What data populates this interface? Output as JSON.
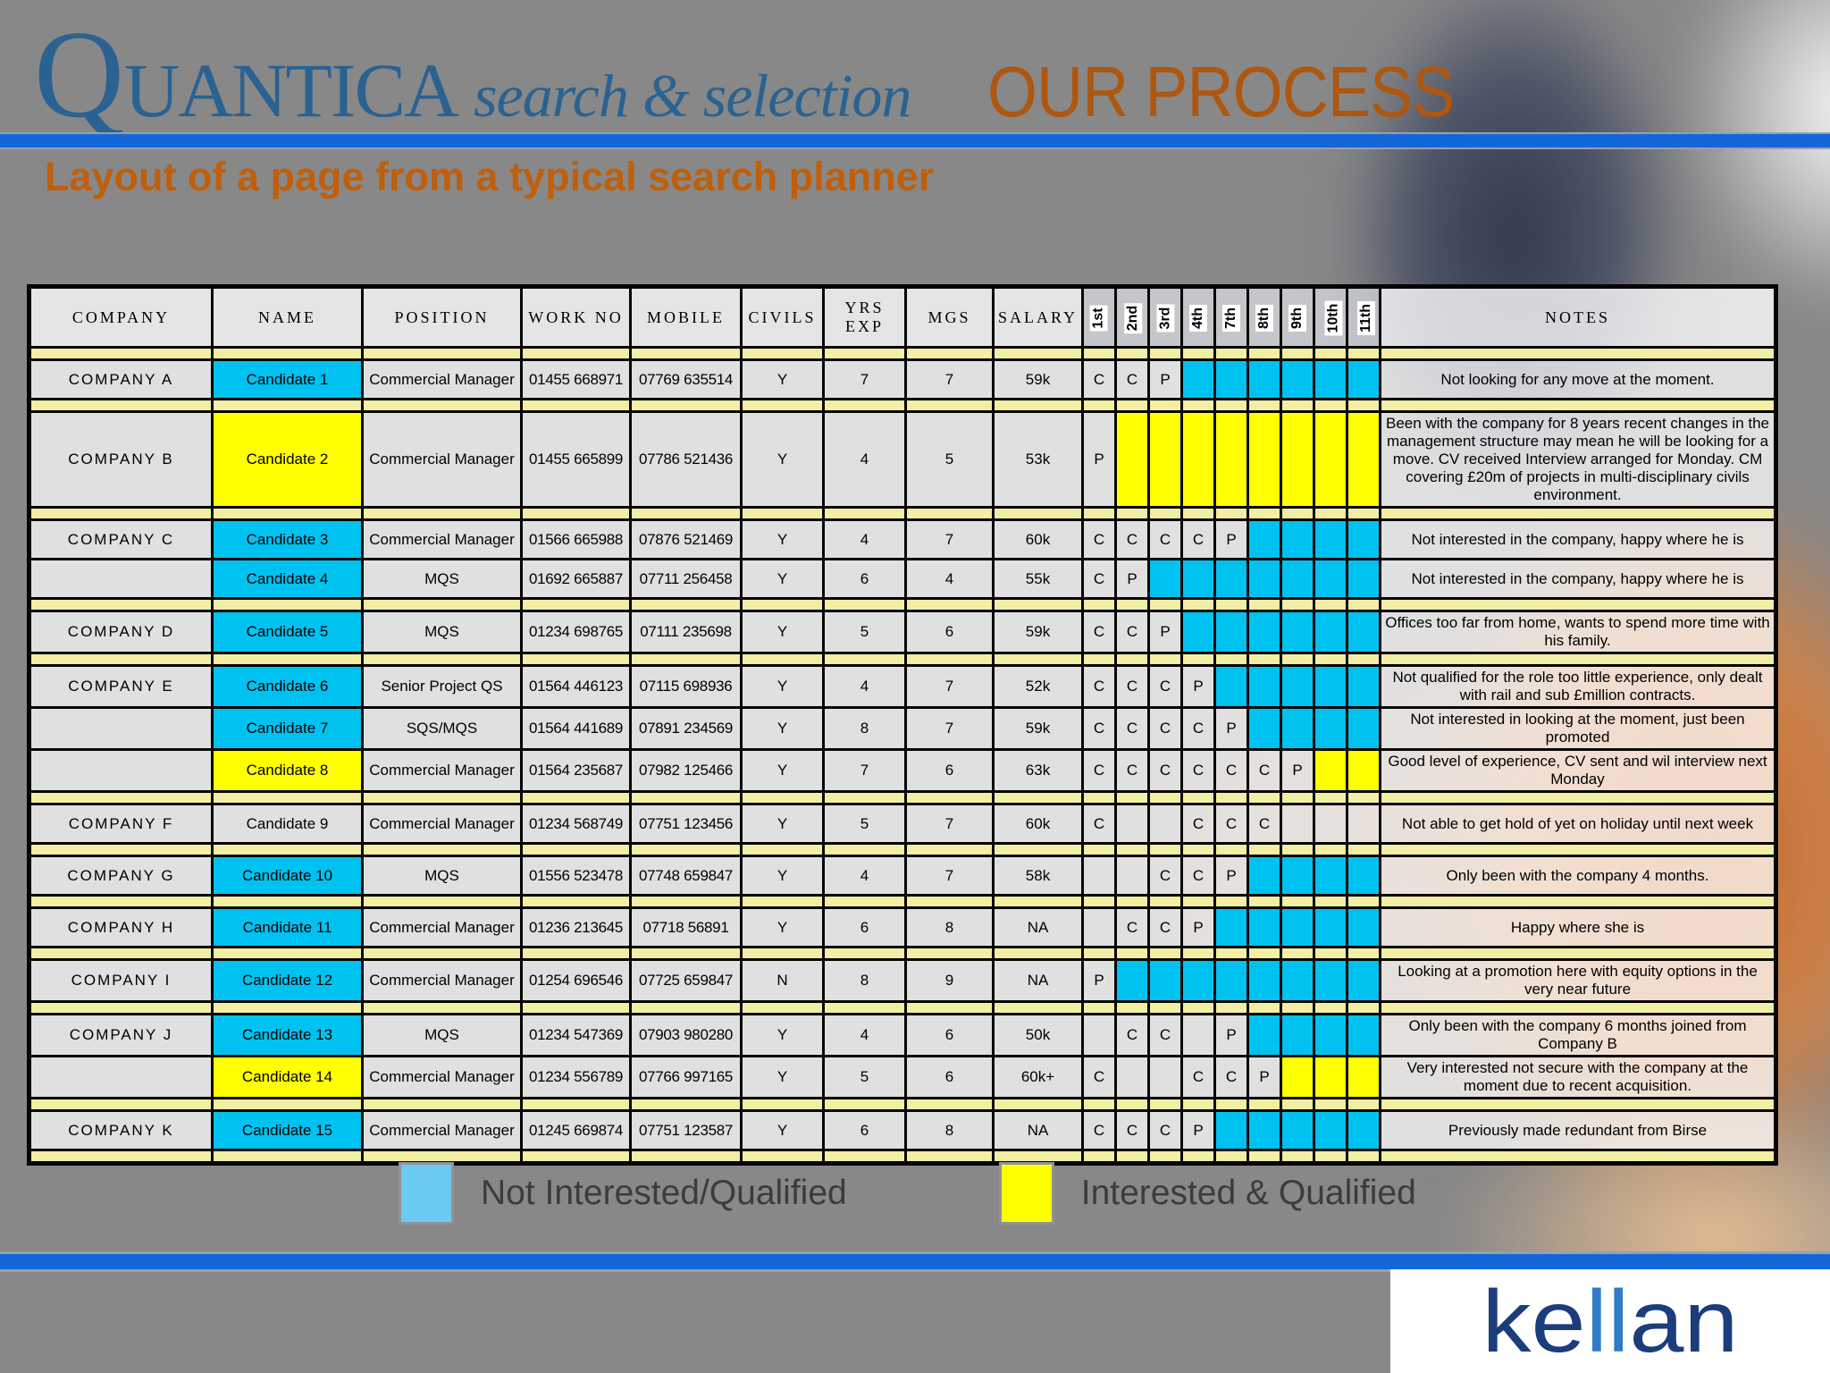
{
  "colors": {
    "steel_blue": "#2a6291",
    "title_orange": "#ad5710",
    "subtitle_orange": "#c05f0b",
    "bar_blue": "#1467d8",
    "highlight_cyan": "#00c2f0",
    "highlight_yellow": "#ffff00",
    "separator_yellow": "#f2eea3",
    "legend_cyan": "#6cc9f1",
    "kellan_navy": "#1c3d7c",
    "kellan_light": "#2f7bc9"
  },
  "header": {
    "logo_q": "Q",
    "logo_rest": "UANTICA",
    "logo_tagline": "search & selection",
    "title": "OUR PROCESS"
  },
  "subtitle": "Layout of a page from a typical search planner",
  "table": {
    "columns": [
      "COMPANY",
      "NAME",
      "POSITION",
      "WORK NO",
      "MOBILE",
      "CIVILS",
      "YRS EXP",
      "MGS",
      "SALARY"
    ],
    "stage_columns": [
      "1st",
      "2nd",
      "3rd",
      "4th",
      "7th",
      "8th",
      "9th",
      "10th",
      "11th"
    ],
    "notes_column": "NOTES",
    "rows": [
      {
        "company": "COMPANY A",
        "name": "Candidate 1",
        "highlight": "c",
        "position": "Commercial Manager",
        "work_no": "01455 668971",
        "mobile": "07769 635514",
        "civils": "Y",
        "yrs_exp": "7",
        "mgs": "7",
        "salary": "59k",
        "stages": [
          {
            "mark": "C",
            "fill": ""
          },
          {
            "mark": "C",
            "fill": ""
          },
          {
            "mark": "P",
            "fill": ""
          },
          {
            "mark": "",
            "fill": "c"
          },
          {
            "mark": "",
            "fill": "c"
          },
          {
            "mark": "",
            "fill": "c"
          },
          {
            "mark": "",
            "fill": "c"
          },
          {
            "mark": "",
            "fill": "c"
          },
          {
            "mark": "",
            "fill": "c"
          }
        ],
        "notes": "Not looking for any move at the moment.",
        "notes_centered": true,
        "new_group": true
      },
      {
        "company": "COMPANY B",
        "name": "Candidate 2",
        "highlight": "y",
        "position": "Commercial Manager",
        "work_no": "01455 665899",
        "mobile": "07786 521436",
        "civils": "Y",
        "yrs_exp": "4",
        "mgs": "5",
        "salary": "53k",
        "stages": [
          {
            "mark": "P",
            "fill": ""
          },
          {
            "mark": "",
            "fill": "y"
          },
          {
            "mark": "",
            "fill": "y"
          },
          {
            "mark": "",
            "fill": "y"
          },
          {
            "mark": "",
            "fill": "y"
          },
          {
            "mark": "",
            "fill": "y"
          },
          {
            "mark": "",
            "fill": "y"
          },
          {
            "mark": "",
            "fill": "y"
          },
          {
            "mark": "",
            "fill": "y"
          }
        ],
        "notes": "Been with the company for 8 years recent changes in the management structure may mean he will be looking for a move.  CV received Interview arranged for Monday.  CM covering £20m of projects in multi-disciplinary civils environment.",
        "notes_centered": false,
        "new_group": true
      },
      {
        "company": "COMPANY C",
        "name": "Candidate 3",
        "highlight": "c",
        "position": "Commercial Manager",
        "work_no": "01566 665988",
        "mobile": "07876 521469",
        "civils": "Y",
        "yrs_exp": "4",
        "mgs": "7",
        "salary": "60k",
        "stages": [
          {
            "mark": "C",
            "fill": ""
          },
          {
            "mark": "C",
            "fill": ""
          },
          {
            "mark": "C",
            "fill": ""
          },
          {
            "mark": "C",
            "fill": ""
          },
          {
            "mark": "P",
            "fill": ""
          },
          {
            "mark": "",
            "fill": "c"
          },
          {
            "mark": "",
            "fill": "c"
          },
          {
            "mark": "",
            "fill": "c"
          },
          {
            "mark": "",
            "fill": "c"
          }
        ],
        "notes": "Not interested in the company, happy where he is",
        "notes_centered": false,
        "new_group": true
      },
      {
        "company": "",
        "name": "Candidate 4",
        "highlight": "c",
        "position": "MQS",
        "work_no": "01692 665887",
        "mobile": "07711 256458",
        "civils": "Y",
        "yrs_exp": "6",
        "mgs": "4",
        "salary": "55k",
        "stages": [
          {
            "mark": "C",
            "fill": ""
          },
          {
            "mark": "P",
            "fill": ""
          },
          {
            "mark": "",
            "fill": "c"
          },
          {
            "mark": "",
            "fill": "c"
          },
          {
            "mark": "",
            "fill": "c"
          },
          {
            "mark": "",
            "fill": "c"
          },
          {
            "mark": "",
            "fill": "c"
          },
          {
            "mark": "",
            "fill": "c"
          },
          {
            "mark": "",
            "fill": "c"
          }
        ],
        "notes": "Not interested in the company, happy where he is",
        "notes_centered": false,
        "new_group": false
      },
      {
        "company": "COMPANY D",
        "name": "Candidate 5",
        "highlight": "c",
        "position": "MQS",
        "work_no": "01234 698765",
        "mobile": "07111 235698",
        "civils": "Y",
        "yrs_exp": "5",
        "mgs": "6",
        "salary": "59k",
        "stages": [
          {
            "mark": "C",
            "fill": ""
          },
          {
            "mark": "C",
            "fill": ""
          },
          {
            "mark": "P",
            "fill": ""
          },
          {
            "mark": "",
            "fill": "c"
          },
          {
            "mark": "",
            "fill": "c"
          },
          {
            "mark": "",
            "fill": "c"
          },
          {
            "mark": "",
            "fill": "c"
          },
          {
            "mark": "",
            "fill": "c"
          },
          {
            "mark": "",
            "fill": "c"
          }
        ],
        "notes": "Offices too far from home, wants to spend more time with his family.",
        "notes_centered": false,
        "new_group": true
      },
      {
        "company": "COMPANY E",
        "name": "Candidate 6",
        "highlight": "c",
        "position": "Senior Project QS",
        "work_no": "01564 446123",
        "mobile": "07115 698936",
        "civils": "Y",
        "yrs_exp": "4",
        "mgs": "7",
        "salary": "52k",
        "stages": [
          {
            "mark": "C",
            "fill": ""
          },
          {
            "mark": "C",
            "fill": ""
          },
          {
            "mark": "C",
            "fill": ""
          },
          {
            "mark": "P",
            "fill": ""
          },
          {
            "mark": "",
            "fill": "c"
          },
          {
            "mark": "",
            "fill": "c"
          },
          {
            "mark": "",
            "fill": "c"
          },
          {
            "mark": "",
            "fill": "c"
          },
          {
            "mark": "",
            "fill": "c"
          }
        ],
        "notes": "Not qualified for the role too little experience, only dealt with rail and sub £million contracts.",
        "notes_centered": false,
        "new_group": true
      },
      {
        "company": "",
        "name": "Candidate 7",
        "highlight": "c",
        "position": "SQS/MQS",
        "work_no": "01564 441689",
        "mobile": "07891 234569",
        "civils": "Y",
        "yrs_exp": "8",
        "mgs": "7",
        "salary": "59k",
        "stages": [
          {
            "mark": "C",
            "fill": ""
          },
          {
            "mark": "C",
            "fill": ""
          },
          {
            "mark": "C",
            "fill": ""
          },
          {
            "mark": "C",
            "fill": ""
          },
          {
            "mark": "P",
            "fill": ""
          },
          {
            "mark": "",
            "fill": "c"
          },
          {
            "mark": "",
            "fill": "c"
          },
          {
            "mark": "",
            "fill": "c"
          },
          {
            "mark": "",
            "fill": "c"
          }
        ],
        "notes": "Not interested in looking at the moment, just been promoted",
        "notes_centered": false,
        "new_group": false
      },
      {
        "company": "",
        "name": "Candidate 8",
        "highlight": "y",
        "position": "Commercial Manager",
        "work_no": "01564 235687",
        "mobile": "07982 125466",
        "civils": "Y",
        "yrs_exp": "7",
        "mgs": "6",
        "salary": "63k",
        "stages": [
          {
            "mark": "C",
            "fill": ""
          },
          {
            "mark": "C",
            "fill": ""
          },
          {
            "mark": "C",
            "fill": ""
          },
          {
            "mark": "C",
            "fill": ""
          },
          {
            "mark": "C",
            "fill": ""
          },
          {
            "mark": "C",
            "fill": ""
          },
          {
            "mark": "P",
            "fill": ""
          },
          {
            "mark": "",
            "fill": "y"
          },
          {
            "mark": "",
            "fill": "y"
          }
        ],
        "notes": "Good level of experience, CV sent and wil interview next Monday",
        "notes_centered": false,
        "new_group": false
      },
      {
        "company": "COMPANY F",
        "name": "Candidate 9",
        "highlight": "",
        "position": "Commercial Manager",
        "work_no": "01234 568749",
        "mobile": "07751 123456",
        "civils": "Y",
        "yrs_exp": "5",
        "mgs": "7",
        "salary": "60k",
        "stages": [
          {
            "mark": "C",
            "fill": ""
          },
          {
            "mark": "",
            "fill": ""
          },
          {
            "mark": "",
            "fill": ""
          },
          {
            "mark": "C",
            "fill": ""
          },
          {
            "mark": "C",
            "fill": ""
          },
          {
            "mark": "C",
            "fill": ""
          },
          {
            "mark": "",
            "fill": ""
          },
          {
            "mark": "",
            "fill": ""
          },
          {
            "mark": "",
            "fill": ""
          }
        ],
        "notes": "Not able to get hold of yet on holiday until next week",
        "notes_centered": false,
        "new_group": true
      },
      {
        "company": "COMPANY G",
        "name": "Candidate 10",
        "highlight": "c",
        "position": "MQS",
        "work_no": "01556 523478",
        "mobile": "07748 659847",
        "civils": "Y",
        "yrs_exp": "4",
        "mgs": "7",
        "salary": "58k",
        "stages": [
          {
            "mark": "",
            "fill": ""
          },
          {
            "mark": "",
            "fill": ""
          },
          {
            "mark": "C",
            "fill": ""
          },
          {
            "mark": "C",
            "fill": ""
          },
          {
            "mark": "P",
            "fill": ""
          },
          {
            "mark": "",
            "fill": "c"
          },
          {
            "mark": "",
            "fill": "c"
          },
          {
            "mark": "",
            "fill": "c"
          },
          {
            "mark": "",
            "fill": "c"
          }
        ],
        "notes": "Only been with the company 4 months.",
        "notes_centered": false,
        "new_group": true
      },
      {
        "company": "COMPANY H",
        "name": "Candidate 11",
        "highlight": "c",
        "position": "Commercial Manager",
        "work_no": "01236 213645",
        "mobile": "07718 56891",
        "civils": "Y",
        "yrs_exp": "6",
        "mgs": "8",
        "salary": "NA",
        "stages": [
          {
            "mark": "",
            "fill": ""
          },
          {
            "mark": "C",
            "fill": ""
          },
          {
            "mark": "C",
            "fill": ""
          },
          {
            "mark": "P",
            "fill": ""
          },
          {
            "mark": "",
            "fill": "c"
          },
          {
            "mark": "",
            "fill": "c"
          },
          {
            "mark": "",
            "fill": "c"
          },
          {
            "mark": "",
            "fill": "c"
          },
          {
            "mark": "",
            "fill": "c"
          }
        ],
        "notes": "Happy where she is",
        "notes_centered": false,
        "new_group": true
      },
      {
        "company": "COMPANY I",
        "name": "Candidate 12",
        "highlight": "c",
        "position": "Commercial Manager",
        "work_no": "01254 696546",
        "mobile": "07725 659847",
        "civils": "N",
        "yrs_exp": "8",
        "mgs": "9",
        "salary": "NA",
        "stages": [
          {
            "mark": "P",
            "fill": ""
          },
          {
            "mark": "",
            "fill": "c"
          },
          {
            "mark": "",
            "fill": "c"
          },
          {
            "mark": "",
            "fill": "c"
          },
          {
            "mark": "",
            "fill": "c"
          },
          {
            "mark": "",
            "fill": "c"
          },
          {
            "mark": "",
            "fill": "c"
          },
          {
            "mark": "",
            "fill": "c"
          },
          {
            "mark": "",
            "fill": "c"
          }
        ],
        "notes": "Looking at a promotion here with equity options in the very near future",
        "notes_centered": false,
        "new_group": true
      },
      {
        "company": "COMPANY J",
        "name": "Candidate 13",
        "highlight": "c",
        "position": "MQS",
        "work_no": "01234 547369",
        "mobile": "07903 980280",
        "civils": "Y",
        "yrs_exp": "4",
        "mgs": "6",
        "salary": "50k",
        "stages": [
          {
            "mark": "",
            "fill": ""
          },
          {
            "mark": "C",
            "fill": ""
          },
          {
            "mark": "C",
            "fill": ""
          },
          {
            "mark": "",
            "fill": ""
          },
          {
            "mark": "P",
            "fill": ""
          },
          {
            "mark": "",
            "fill": "c"
          },
          {
            "mark": "",
            "fill": "c"
          },
          {
            "mark": "",
            "fill": "c"
          },
          {
            "mark": "",
            "fill": "c"
          }
        ],
        "notes": "Only been with the company 6 months joined from Company B",
        "notes_centered": false,
        "new_group": true
      },
      {
        "company": "",
        "name": "Candidate 14",
        "highlight": "y",
        "position": "Commercial Manager",
        "work_no": "01234 556789",
        "mobile": "07766 997165",
        "civils": "Y",
        "yrs_exp": "5",
        "mgs": "6",
        "salary": "60k+",
        "stages": [
          {
            "mark": "C",
            "fill": ""
          },
          {
            "mark": "",
            "fill": ""
          },
          {
            "mark": "",
            "fill": ""
          },
          {
            "mark": "C",
            "fill": ""
          },
          {
            "mark": "C",
            "fill": ""
          },
          {
            "mark": "P",
            "fill": ""
          },
          {
            "mark": "",
            "fill": "y"
          },
          {
            "mark": "",
            "fill": "y"
          },
          {
            "mark": "",
            "fill": "y"
          }
        ],
        "notes": "Very interested not secure with the company at the moment due to recent acquisition.",
        "notes_centered": false,
        "new_group": false
      },
      {
        "company": "COMPANY K",
        "name": "Candidate 15",
        "highlight": "c",
        "position": "Commercial Manager",
        "work_no": "01245 669874",
        "mobile": "07751 123587",
        "civils": "Y",
        "yrs_exp": "6",
        "mgs": "8",
        "salary": "NA",
        "stages": [
          {
            "mark": "C",
            "fill": ""
          },
          {
            "mark": "C",
            "fill": ""
          },
          {
            "mark": "C",
            "fill": ""
          },
          {
            "mark": "P",
            "fill": ""
          },
          {
            "mark": "",
            "fill": "c"
          },
          {
            "mark": "",
            "fill": "c"
          },
          {
            "mark": "",
            "fill": "c"
          },
          {
            "mark": "",
            "fill": "c"
          },
          {
            "mark": "",
            "fill": "c"
          }
        ],
        "notes": "Previously made redundant from Birse",
        "notes_centered": false,
        "new_group": true
      }
    ]
  },
  "legend": [
    {
      "key": "not-interested",
      "label": "Not Interested/Qualified",
      "color": "#6cc9f1"
    },
    {
      "key": "interested",
      "label": "Interested & Qualified",
      "color": "#ffff00"
    }
  ],
  "footer": {
    "logo_parts": {
      "a": "ke",
      "b": "ll",
      "c": "an"
    }
  }
}
